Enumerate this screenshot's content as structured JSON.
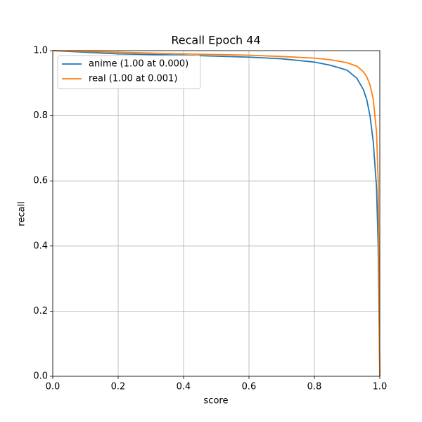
{
  "chart_data": {
    "type": "line",
    "title": "Recall Epoch 44",
    "x_label": "score",
    "y_label": "recall",
    "x": [
      0,
      0.2,
      0.4,
      0.6,
      0.7,
      0.8,
      0.85,
      0.9,
      0.93,
      0.95,
      0.96,
      0.97,
      0.98,
      0.99,
      0.995,
      1.0
    ],
    "series": [
      {
        "name": "anime (1.00 at 0.000)",
        "color": "#1f77b4",
        "values": [
          1.0,
          0.99,
          0.986,
          0.98,
          0.975,
          0.965,
          0.955,
          0.94,
          0.915,
          0.88,
          0.85,
          0.8,
          0.72,
          0.58,
          0.4,
          0
        ]
      },
      {
        "name": "real (1.00 at 0.001)",
        "color": "#ff7f0e",
        "values": [
          1.0,
          0.995,
          0.99,
          0.986,
          0.982,
          0.977,
          0.972,
          0.963,
          0.952,
          0.935,
          0.92,
          0.895,
          0.85,
          0.75,
          0.6,
          0
        ]
      }
    ],
    "xlim": [
      0,
      1
    ],
    "ylim": [
      0,
      1
    ],
    "xticks": [
      {
        "value": 0,
        "label": "0.0"
      },
      0.2,
      0.4,
      0.6,
      0.8,
      {
        "value": 1,
        "label": "1.0"
      }
    ],
    "yticks": [
      {
        "value": 0,
        "label": "0.0"
      },
      0.2,
      0.4,
      0.6,
      0.8,
      {
        "value": 1,
        "label": "1.0"
      }
    ],
    "grid": true,
    "legend": "upper left"
  }
}
